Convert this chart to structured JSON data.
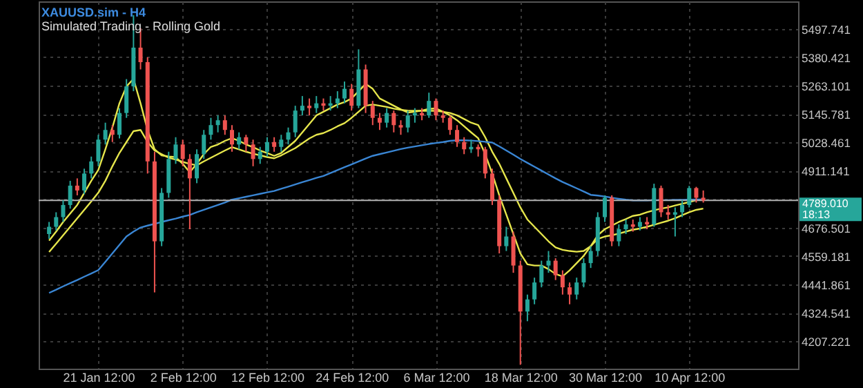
{
  "chart_data": {
    "type": "candlestick",
    "title": "XAUUSD.sim - H4",
    "subtitle": "Simulated Trading - Rolling Gold",
    "categories": [
      null,
      null,
      null,
      null,
      null,
      null,
      null,
      "21 Jan 12:00",
      null,
      null,
      null,
      null,
      null,
      null,
      null,
      null,
      null,
      null,
      null,
      "2 Feb 12:00",
      null,
      null,
      null,
      null,
      null,
      null,
      null,
      null,
      null,
      null,
      null,
      "12 Feb 12:00",
      null,
      null,
      null,
      null,
      null,
      null,
      null,
      null,
      null,
      null,
      null,
      "24 Feb 12:00",
      null,
      null,
      null,
      null,
      null,
      null,
      null,
      null,
      null,
      null,
      null,
      "6 Mar 12:00",
      null,
      null,
      null,
      null,
      null,
      null,
      null,
      null,
      null,
      null,
      null,
      "18 Mar 12:00",
      null,
      null,
      null,
      null,
      null,
      null,
      null,
      null,
      null,
      null,
      null,
      "30 Mar 12:00",
      null,
      null,
      null,
      null,
      null,
      null,
      null,
      null,
      null,
      null,
      null,
      "10 Apr 12:00",
      null,
      null,
      null,
      null,
      null,
      null,
      null,
      null,
      null,
      null,
      null,
      null,
      null,
      null
    ],
    "ohlc": [
      [
        4650,
        4700,
        4630,
        4680
      ],
      [
        4680,
        4740,
        4665,
        4720
      ],
      [
        4720,
        4790,
        4700,
        4770
      ],
      [
        4770,
        4870,
        4755,
        4850
      ],
      [
        4850,
        4880,
        4810,
        4830
      ],
      [
        4830,
        4920,
        4815,
        4900
      ],
      [
        4900,
        4970,
        4880,
        4950
      ],
      [
        4950,
        5060,
        4930,
        5040
      ],
      [
        5040,
        5110,
        5020,
        5080
      ],
      [
        5080,
        5100,
        5030,
        5060
      ],
      [
        5060,
        5170,
        5045,
        5150
      ],
      [
        5150,
        5290,
        5130,
        5260
      ],
      [
        5260,
        5554,
        5240,
        5420
      ],
      [
        5420,
        5500,
        5330,
        5360
      ],
      [
        5360,
        5380,
        4900,
        4950
      ],
      [
        4950,
        4990,
        4409,
        4620
      ],
      [
        4620,
        4840,
        4600,
        4820
      ],
      [
        4820,
        4990,
        4800,
        4960
      ],
      [
        4960,
        5050,
        4940,
        5020
      ],
      [
        5020,
        5040,
        4930,
        4960
      ],
      [
        4960,
        4980,
        4670,
        4880
      ],
      [
        4880,
        5000,
        4860,
        4980
      ],
      [
        4980,
        5080,
        4960,
        5060
      ],
      [
        5060,
        5130,
        5040,
        5100
      ],
      [
        5100,
        5140,
        5070,
        5120
      ],
      [
        5120,
        5140,
        5060,
        5080
      ],
      [
        5080,
        5100,
        4990,
        5020
      ],
      [
        5020,
        5070,
        5000,
        5050
      ],
      [
        5050,
        5060,
        4990,
        5020
      ],
      [
        5020,
        5040,
        4930,
        4960
      ],
      [
        4960,
        5010,
        4940,
        4990
      ],
      [
        4990,
        5050,
        4970,
        5030
      ],
      [
        5030,
        5050,
        4990,
        5010
      ],
      [
        5010,
        5060,
        4990,
        5040
      ],
      [
        5040,
        5090,
        5020,
        5070
      ],
      [
        5070,
        5180,
        5050,
        5160
      ],
      [
        5160,
        5220,
        5140,
        5180
      ],
      [
        5180,
        5210,
        5140,
        5170
      ],
      [
        5170,
        5220,
        5150,
        5190
      ],
      [
        5190,
        5210,
        5160,
        5180
      ],
      [
        5180,
        5220,
        5160,
        5190
      ],
      [
        5190,
        5240,
        5170,
        5210
      ],
      [
        5210,
        5280,
        5190,
        5250
      ],
      [
        5250,
        5270,
        5160,
        5180
      ],
      [
        5180,
        5413,
        5170,
        5330
      ],
      [
        5330,
        5350,
        5150,
        5180
      ],
      [
        5180,
        5200,
        5100,
        5130
      ],
      [
        5130,
        5150,
        5080,
        5110
      ],
      [
        5110,
        5170,
        5090,
        5150
      ],
      [
        5150,
        5160,
        5070,
        5100
      ],
      [
        5100,
        5120,
        5060,
        5090
      ],
      [
        5090,
        5160,
        5070,
        5140
      ],
      [
        5140,
        5170,
        5110,
        5150
      ],
      [
        5150,
        5170,
        5120,
        5140
      ],
      [
        5140,
        5234,
        5130,
        5200
      ],
      [
        5200,
        5210,
        5120,
        5140
      ],
      [
        5140,
        5160,
        5110,
        5130
      ],
      [
        5130,
        5140,
        5060,
        5080
      ],
      [
        5080,
        5100,
        5010,
        5030
      ],
      [
        5030,
        5050,
        4980,
        5000
      ],
      [
        5000,
        5040,
        4985,
        5010
      ],
      [
        5010,
        5020,
        4970,
        5000
      ],
      [
        5000,
        5010,
        4880,
        4900
      ],
      [
        4900,
        4920,
        4770,
        4790
      ],
      [
        4790,
        4810,
        4570,
        4600
      ],
      [
        4600,
        4680,
        4580,
        4640
      ],
      [
        4640,
        4660,
        4490,
        4520
      ],
      [
        4520,
        4540,
        4110,
        4330
      ],
      [
        4330,
        4400,
        4290,
        4380
      ],
      [
        4380,
        4470,
        4360,
        4450
      ],
      [
        4450,
        4540,
        4430,
        4520
      ],
      [
        4520,
        4580,
        4490,
        4540
      ],
      [
        4540,
        4550,
        4460,
        4480
      ],
      [
        4480,
        4500,
        4400,
        4430
      ],
      [
        4430,
        4450,
        4360,
        4400
      ],
      [
        4400,
        4470,
        4380,
        4450
      ],
      [
        4450,
        4550,
        4430,
        4530
      ],
      [
        4530,
        4600,
        4510,
        4580
      ],
      [
        4580,
        4740,
        4560,
        4720
      ],
      [
        4720,
        4810,
        4700,
        4800
      ],
      [
        4800,
        4810,
        4600,
        4620
      ],
      [
        4620,
        4690,
        4600,
        4670
      ],
      [
        4670,
        4710,
        4650,
        4690
      ],
      [
        4690,
        4710,
        4660,
        4680
      ],
      [
        4680,
        4720,
        4665,
        4700
      ],
      [
        4700,
        4720,
        4670,
        4690
      ],
      [
        4690,
        4858,
        4680,
        4840
      ],
      [
        4840,
        4850,
        4720,
        4740
      ],
      [
        4740,
        4770,
        4710,
        4730
      ],
      [
        4730,
        4760,
        4640,
        4740
      ],
      [
        4740,
        4790,
        4720,
        4770
      ],
      [
        4770,
        4849,
        4760,
        4840
      ],
      [
        4840,
        4845,
        4780,
        4800
      ],
      [
        4800,
        4830,
        4780,
        4789.01
      ],
      null,
      null,
      null,
      null,
      null,
      null,
      null,
      null,
      null,
      null,
      null,
      null
    ],
    "series": [
      {
        "type": "line",
        "color": "#e6e64c",
        "values": [
          4623,
          4660,
          4700,
          4735,
          4770,
          4820,
          4870,
          4915,
          5000,
          5090,
          5190,
          5260,
          5291,
          5190,
          5080,
          5000,
          4975,
          4970,
          4968,
          4940,
          4905,
          4940,
          4980,
          5010,
          5020,
          5035,
          5046,
          5035,
          5020,
          5009,
          4995,
          4985,
          4973,
          4985,
          5010,
          5035,
          5070,
          5105,
          5140,
          5155,
          5170,
          5185,
          5195,
          5210,
          5240,
          5270,
          5250,
          5210,
          5195,
          5180,
          5165,
          5152,
          5155,
          5160,
          5167,
          5169,
          5155,
          5140,
          5120,
          5095,
          5070,
          5046,
          4980,
          4900,
          4810,
          4730,
          4650,
          4570,
          4525,
          4520,
          4520,
          4505,
          4485,
          4475,
          4500,
          4530,
          4560,
          4600,
          4645,
          4670,
          4685,
          4700,
          4712,
          4725,
          4730,
          4740,
          4748,
          4755,
          4760,
          4768,
          4775,
          4782,
          4790,
          4793,
          null,
          null,
          null,
          null,
          null,
          null,
          null,
          null,
          null,
          null,
          null,
          null
        ]
      },
      {
        "type": "line",
        "color": "#e6e64c",
        "values": [
          4576,
          4610,
          4645,
          4680,
          4715,
          4750,
          4785,
          4821,
          4870,
          4930,
          4985,
          5030,
          5075,
          5080,
          5030,
          4995,
          4980,
          4965,
          4958,
          4948,
          4940,
          4934,
          4950,
          4965,
          4980,
          4995,
          5009,
          5000,
          4990,
          4982,
          4975,
          4968,
          4963,
          4975,
          4990,
          5005,
          5025,
          5045,
          5060,
          5067,
          5080,
          5095,
          5108,
          5130,
          5155,
          5180,
          5185,
          5180,
          5175,
          5168,
          5163,
          5160,
          5159,
          5159,
          5159,
          5159,
          5155,
          5150,
          5140,
          5125,
          5110,
          5100,
          5050,
          4990,
          4940,
          4880,
          4820,
          4760,
          4710,
          4680,
          4650,
          4620,
          4595,
          4585,
          4580,
          4577,
          4580,
          4600,
          4630,
          4640,
          4645,
          4652,
          4660,
          4668,
          4673,
          4680,
          4688,
          4697,
          4705,
          4715,
          4728,
          4740,
          4750,
          4755,
          null,
          null,
          null,
          null,
          null,
          null,
          null,
          null,
          null,
          null,
          null,
          null
        ]
      },
      {
        "type": "line",
        "color": "#3a86d4",
        "values": [
          4407,
          4420,
          4434,
          4447,
          4460,
          4474,
          4487,
          4501,
          4535,
          4570,
          4605,
          4640,
          4660,
          4677,
          4685,
          4692,
          4700,
          4707,
          4714,
          4722,
          4729,
          4740,
          4750,
          4760,
          4770,
          4780,
          4792,
          4798,
          4804,
          4810,
          4816,
          4822,
          4828,
          4837,
          4846,
          4855,
          4864,
          4873,
          4882,
          4890,
          4902,
          4914,
          4926,
          4938,
          4950,
          4962,
          4973,
          4980,
          4987,
          4994,
          5001,
          5007,
          5012,
          5017,
          5022,
          5026,
          5030,
          5035,
          5037,
          5037,
          5036,
          5034,
          5031,
          5028,
          5012,
          4995,
          4978,
          4960,
          4944,
          4928,
          4912,
          4896,
          4880,
          4865,
          4852,
          4839,
          4826,
          4812,
          4809,
          4805,
          4800,
          4796,
          4792,
          4789,
          4789,
          4789,
          4790,
          4790,
          4790,
          4791,
          4791,
          4792,
          4793,
          4793,
          null,
          null,
          null,
          null,
          null,
          null,
          null,
          null,
          null,
          null,
          null,
          null
        ]
      }
    ],
    "ylim": [
      4094,
      5611
    ],
    "yticks": [
      4207.221,
      4324.541,
      4441.861,
      4559.181,
      4676.501,
      {
        "value": 4793.821,
        "label": null
      },
      4911.141,
      5028.461,
      5145.781,
      5263.101,
      5380.421,
      5497.741
    ],
    "ref_lines": [
      {
        "axis": "y",
        "value": 4789.01,
        "label": "4789.010\n18:13",
        "color": "#b0b0b0"
      }
    ],
    "grid": true
  }
}
